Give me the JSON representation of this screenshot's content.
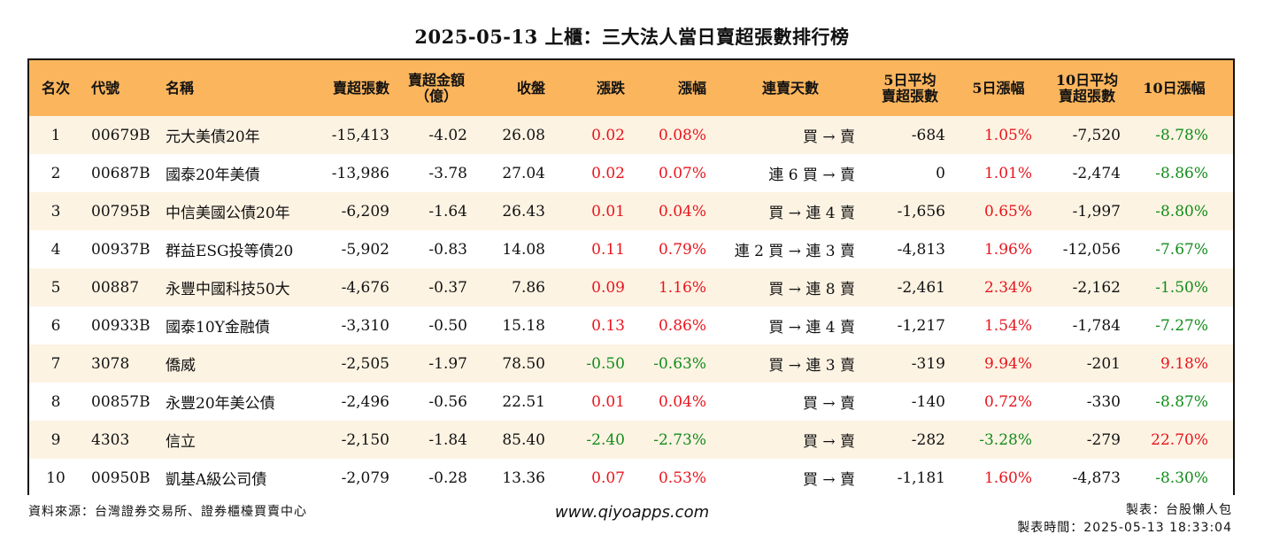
{
  "title": "2025-05-13 上櫃：三大法人當日賣超張數排行榜",
  "headers": {
    "rank": "名次",
    "code": "代號",
    "name": "名稱",
    "sell_lots": "賣超張數",
    "sell_amount_l1": "賣超金額",
    "sell_amount_l2": "（億）",
    "close": "收盤",
    "change": "漲跌",
    "pct": "漲幅",
    "days": "連賣天數",
    "avg5_l1": "5日平均",
    "avg5_l2": "賣超張數",
    "pct5": "5日漲幅",
    "avg10_l1": "10日平均",
    "avg10_l2": "賣超張數",
    "pct10": "10日漲幅"
  },
  "rows": [
    {
      "rank": "1",
      "code": "00679B",
      "name": "元大美債20年",
      "sell_lots": "-15,413",
      "sell_amount": "-4.02",
      "close": "26.08",
      "change": "0.02",
      "pct": "0.08%",
      "days": "買 → 賣",
      "avg5": "-684",
      "pct5": "1.05%",
      "avg10": "-7,520",
      "pct10": "-8.78%"
    },
    {
      "rank": "2",
      "code": "00687B",
      "name": "國泰20年美債",
      "sell_lots": "-13,986",
      "sell_amount": "-3.78",
      "close": "27.04",
      "change": "0.02",
      "pct": "0.07%",
      "days": "連 6 買 → 賣",
      "avg5": "0",
      "pct5": "1.01%",
      "avg10": "-2,474",
      "pct10": "-8.86%"
    },
    {
      "rank": "3",
      "code": "00795B",
      "name": "中信美國公債20年",
      "sell_lots": "-6,209",
      "sell_amount": "-1.64",
      "close": "26.43",
      "change": "0.01",
      "pct": "0.04%",
      "days": "買 → 連 4 賣",
      "avg5": "-1,656",
      "pct5": "0.65%",
      "avg10": "-1,997",
      "pct10": "-8.80%"
    },
    {
      "rank": "4",
      "code": "00937B",
      "name": "群益ESG投等債20",
      "sell_lots": "-5,902",
      "sell_amount": "-0.83",
      "close": "14.08",
      "change": "0.11",
      "pct": "0.79%",
      "days": "連 2 買 → 連 3 賣",
      "avg5": "-4,813",
      "pct5": "1.96%",
      "avg10": "-12,056",
      "pct10": "-7.67%"
    },
    {
      "rank": "5",
      "code": "00887",
      "name": "永豐中國科技50大",
      "sell_lots": "-4,676",
      "sell_amount": "-0.37",
      "close": "7.86",
      "change": "0.09",
      "pct": "1.16%",
      "days": "買 → 連 8 賣",
      "avg5": "-2,461",
      "pct5": "2.34%",
      "avg10": "-2,162",
      "pct10": "-1.50%"
    },
    {
      "rank": "6",
      "code": "00933B",
      "name": "國泰10Y金融債",
      "sell_lots": "-3,310",
      "sell_amount": "-0.50",
      "close": "15.18",
      "change": "0.13",
      "pct": "0.86%",
      "days": "買 → 連 4 賣",
      "avg5": "-1,217",
      "pct5": "1.54%",
      "avg10": "-1,784",
      "pct10": "-7.27%"
    },
    {
      "rank": "7",
      "code": "3078",
      "name": "僑威",
      "sell_lots": "-2,505",
      "sell_amount": "-1.97",
      "close": "78.50",
      "change": "-0.50",
      "pct": "-0.63%",
      "days": "買 → 連 3 賣",
      "avg5": "-319",
      "pct5": "9.94%",
      "avg10": "-201",
      "pct10": "9.18%"
    },
    {
      "rank": "8",
      "code": "00857B",
      "name": "永豐20年美公債",
      "sell_lots": "-2,496",
      "sell_amount": "-0.56",
      "close": "22.51",
      "change": "0.01",
      "pct": "0.04%",
      "days": "買 → 賣",
      "avg5": "-140",
      "pct5": "0.72%",
      "avg10": "-330",
      "pct10": "-8.87%"
    },
    {
      "rank": "9",
      "code": "4303",
      "name": "信立",
      "sell_lots": "-2,150",
      "sell_amount": "-1.84",
      "close": "85.40",
      "change": "-2.40",
      "pct": "-2.73%",
      "days": "買 → 賣",
      "avg5": "-282",
      "pct5": "-3.28%",
      "avg10": "-279",
      "pct10": "22.70%"
    },
    {
      "rank": "10",
      "code": "00950B",
      "name": "凱基A級公司債",
      "sell_lots": "-2,079",
      "sell_amount": "-0.28",
      "close": "13.36",
      "change": "0.07",
      "pct": "0.53%",
      "days": "買 → 賣",
      "avg5": "-1,181",
      "pct5": "1.60%",
      "avg10": "-4,873",
      "pct10": "-8.30%"
    }
  ],
  "colors": {
    "header_bg": "#fbb55d",
    "odd_row_bg": "#fdf3e3",
    "up": "#e8141c",
    "down": "#128c1a"
  },
  "footer": {
    "source": "資料來源：台灣證券交易所、證券櫃檯買賣中心",
    "website": "www.qiyoapps.com",
    "maker": "製表：台股懶人包",
    "made_time": "製表時間：2025-05-13 18:33:04"
  }
}
